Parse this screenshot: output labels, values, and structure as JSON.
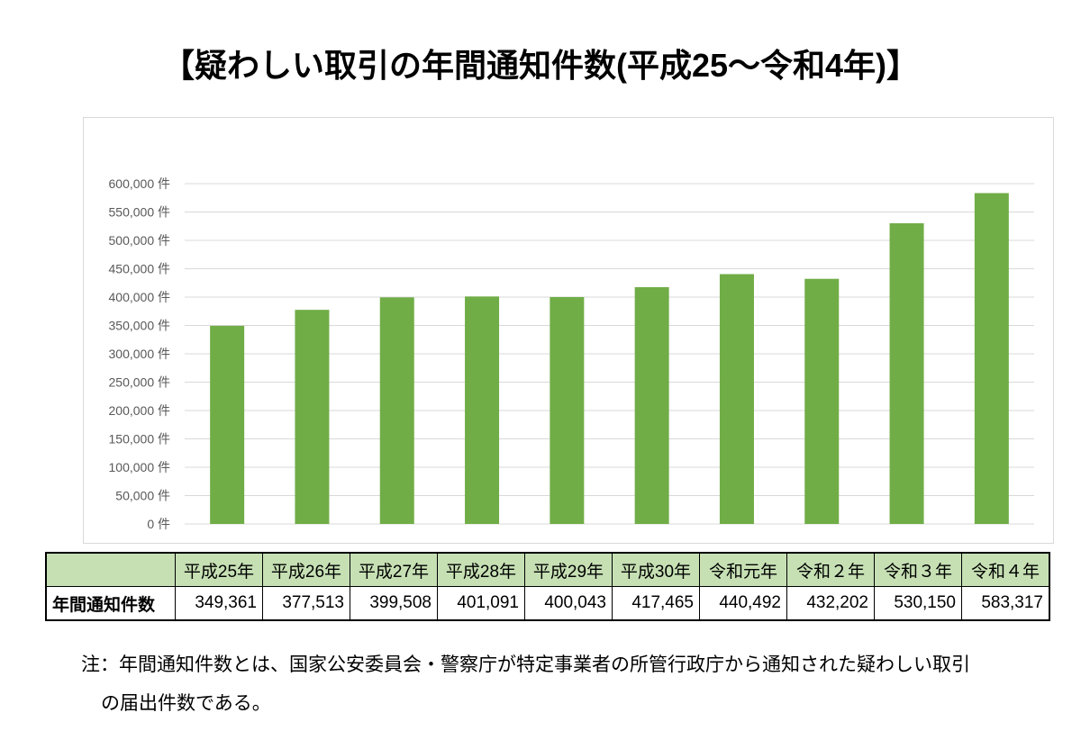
{
  "title": "【疑わしい取引の年間通知件数(平成25～令和4年)】",
  "chart_data": {
    "type": "bar",
    "title": "",
    "xlabel": "",
    "ylabel": "",
    "categories": [
      "平成25年",
      "平成26年",
      "平成27年",
      "平成28年",
      "平成29年",
      "平成30年",
      "令和元年",
      "令和2年",
      "令和3年",
      "令和4年"
    ],
    "values": [
      349361,
      377513,
      399508,
      401091,
      400043,
      417465,
      440492,
      432202,
      530150,
      583317
    ],
    "ylim": [
      0,
      600000
    ],
    "yticks": [
      0,
      50000,
      100000,
      150000,
      200000,
      250000,
      300000,
      350000,
      400000,
      450000,
      500000,
      550000,
      600000
    ],
    "ytick_labels": [
      "0 件",
      "50,000 件",
      "100,000 件",
      "150,000 件",
      "200,000 件",
      "250,000 件",
      "300,000 件",
      "350,000 件",
      "400,000 件",
      "450,000 件",
      "500,000 件",
      "550,000 件",
      "600,000 件"
    ],
    "grid": true,
    "bar_color": "#70ad47"
  },
  "table": {
    "headers": [
      "",
      "平成25年",
      "平成26年",
      "平成27年",
      "平成28年",
      "平成29年",
      "平成30年",
      "令和元年",
      "令和２年",
      "令和３年",
      "令和４年"
    ],
    "row_label": "年間通知件数",
    "values": [
      "349,361",
      "377,513",
      "399,508",
      "401,091",
      "400,043",
      "417,465",
      "440,492",
      "432,202",
      "530,150",
      "583,317"
    ],
    "header_color": "#c6e0b4"
  },
  "note": {
    "line1": "注：年間通知件数とは、国家公安委員会・警察庁が特定事業者の所管行政庁から通知された疑わしい取引",
    "line2": "の届出件数である。"
  }
}
